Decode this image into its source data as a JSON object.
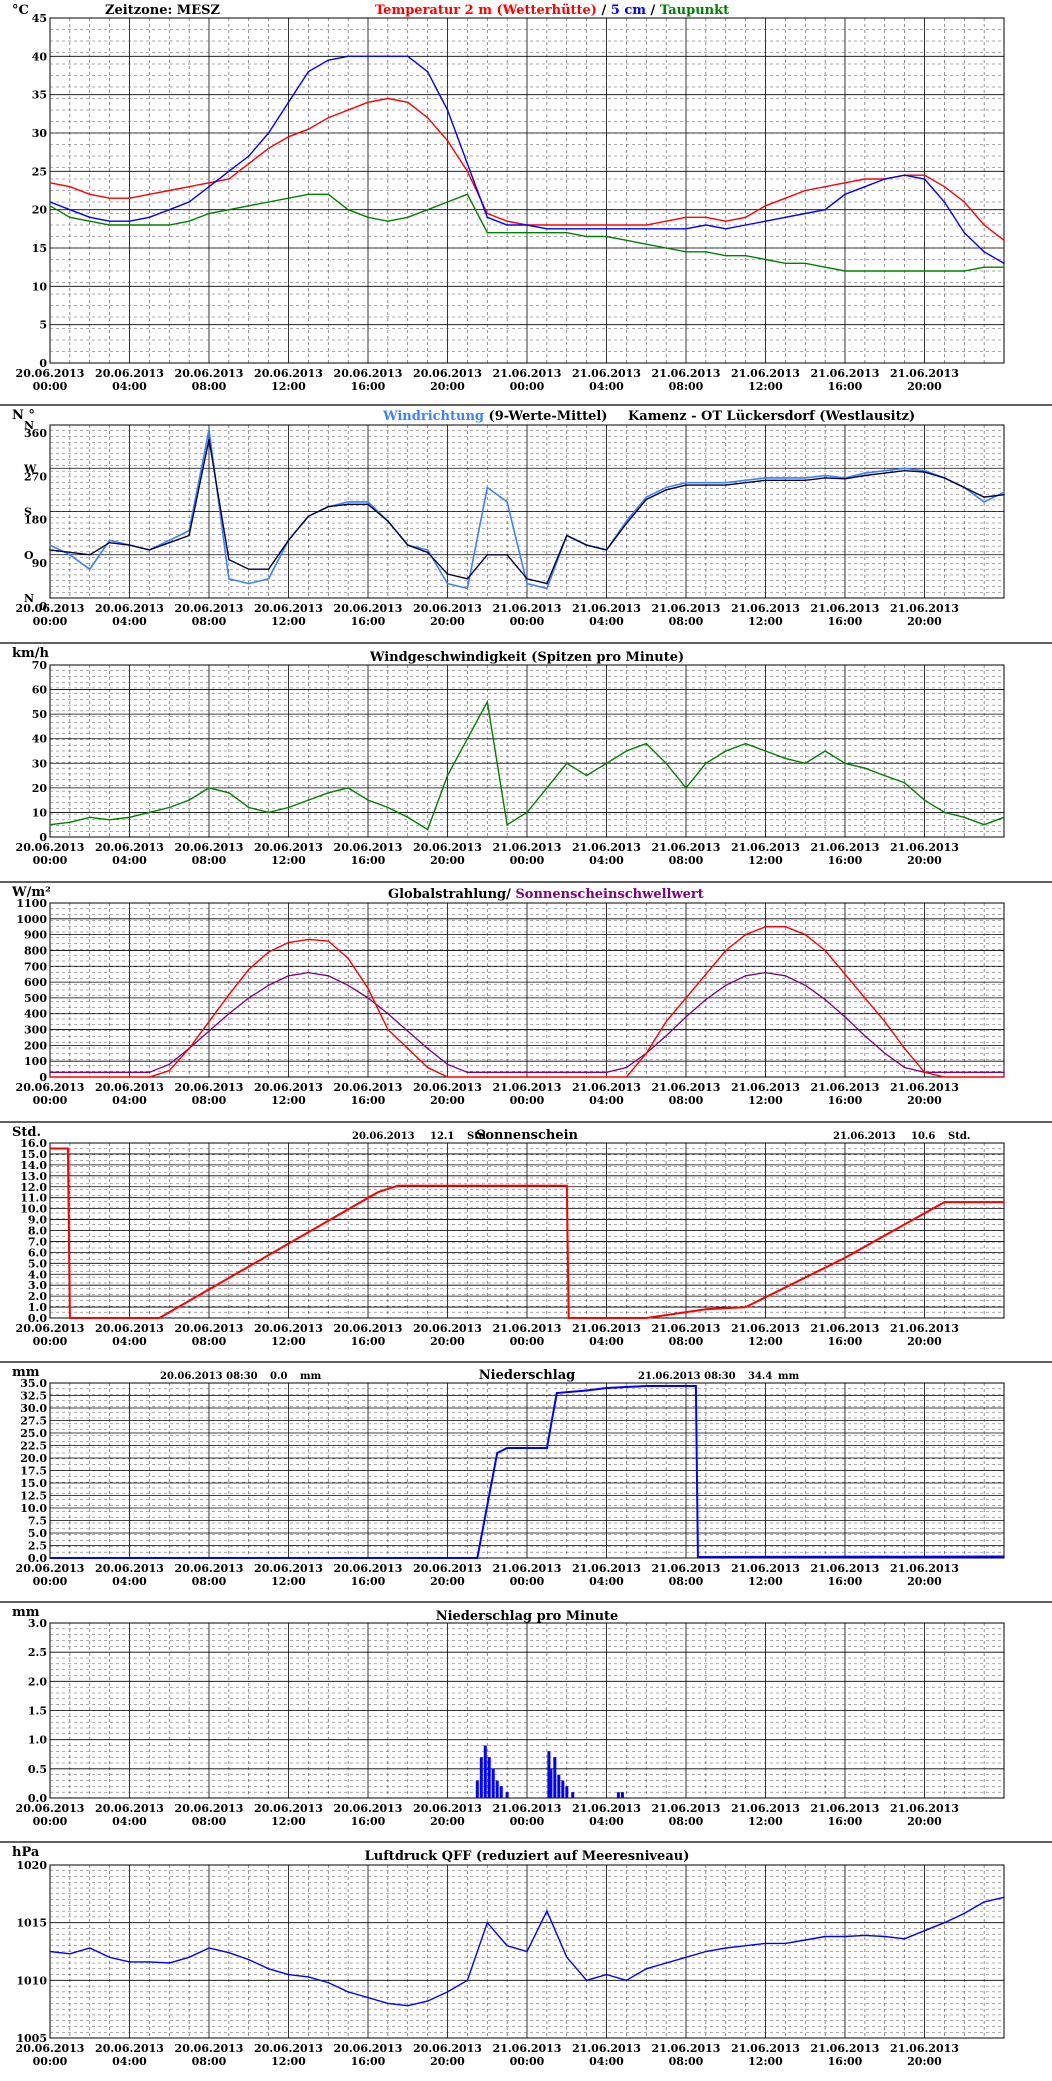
{
  "x_tick_labels": [
    [
      "20.06.2013",
      "00:00"
    ],
    [
      "20.06.2013",
      "04:00"
    ],
    [
      "20.06.2013",
      "08:00"
    ],
    [
      "20.06.2013",
      "12:00"
    ],
    [
      "20.06.2013",
      "16:00"
    ],
    [
      "20.06.2013",
      "20:00"
    ],
    [
      "21.06.2013",
      "00:00"
    ],
    [
      "21.06.2013",
      "04:00"
    ],
    [
      "21.06.2013",
      "08:00"
    ],
    [
      "21.06.2013",
      "12:00"
    ],
    [
      "21.06.2013",
      "16:00"
    ],
    [
      "21.06.2013",
      "20:00"
    ]
  ],
  "colors": {
    "red": "#ff0000",
    "blue": "#0000ff",
    "green": "#008000",
    "lightblue": "#3c82ff",
    "navy": "#000040",
    "purple": "#800080"
  },
  "chart_data": [
    {
      "type": "line",
      "timezone_label": "Zeitzone: MESZ",
      "title_parts": [
        "Temperatur 2 m (Wetterhütte)",
        "  /  ",
        "5 cm",
        " / ",
        "Taupunkt"
      ],
      "ylabel": "°C",
      "ylim": [
        0,
        45
      ],
      "yticks": [
        0,
        5,
        10,
        15,
        20,
        25,
        30,
        35,
        40,
        45
      ],
      "x_hours": [
        0,
        1,
        2,
        3,
        4,
        5,
        6,
        7,
        8,
        9,
        10,
        11,
        12,
        13,
        14,
        15,
        16,
        17,
        18,
        19,
        20,
        21,
        22,
        23,
        24,
        25,
        26,
        27,
        28,
        29,
        30,
        31,
        32,
        33,
        34,
        35,
        36,
        37,
        38,
        39,
        40,
        41,
        42,
        43,
        44,
        45,
        46,
        47,
        48
      ],
      "series": [
        {
          "name": "Temperatur 2 m (Wetterhütte)",
          "color": "red",
          "values": [
            23.5,
            23,
            22,
            21.5,
            21.5,
            22,
            22.5,
            23,
            23.5,
            24,
            26,
            28,
            29.5,
            30.5,
            32,
            33,
            34,
            34.5,
            34,
            32,
            29,
            25,
            19.5,
            18.5,
            18,
            18,
            18,
            18,
            18,
            18,
            18,
            18.5,
            19,
            19,
            18.5,
            19,
            20.5,
            21.5,
            22.5,
            23,
            23.5,
            24,
            24,
            24.5,
            24.5,
            23,
            21,
            18,
            16
          ]
        },
        {
          "name": "5 cm",
          "color": "blue",
          "values": [
            21,
            20,
            19,
            18.5,
            18.5,
            19,
            20,
            21,
            23,
            25,
            27,
            30,
            34,
            38,
            39.5,
            40,
            40,
            40,
            40,
            38,
            33,
            26,
            19,
            18,
            18,
            17.5,
            17.5,
            17.5,
            17.5,
            17.5,
            17.5,
            17.5,
            17.5,
            18,
            17.5,
            18,
            18.5,
            19,
            19.5,
            20,
            22,
            23,
            24,
            24.5,
            24,
            21,
            17,
            14.5,
            13
          ]
        },
        {
          "name": "Taupunkt",
          "color": "green",
          "values": [
            20.5,
            19,
            18.5,
            18,
            18,
            18,
            18,
            18.5,
            19.5,
            20,
            20.5,
            21,
            21.5,
            22,
            22,
            20,
            19,
            18.5,
            19,
            20,
            21,
            22,
            17,
            17,
            17,
            17,
            17,
            16.5,
            16.5,
            16,
            15.5,
            15,
            14.5,
            14.5,
            14,
            14,
            13.5,
            13,
            13,
            12.5,
            12,
            12,
            12,
            12,
            12,
            12,
            12,
            12.5,
            12.5
          ]
        }
      ]
    },
    {
      "type": "line",
      "title_parts": [
        "Windrichtung",
        " (9-Werte-Mittel)"
      ],
      "station": "Kamenz - OT Lückersdorf (Westlausitz)",
      "ylabel": "N °",
      "ylim": [
        0,
        360
      ],
      "yticks": [
        0,
        90,
        180,
        270,
        360
      ],
      "direction_labels": [
        {
          "label": "N",
          "value": 360
        },
        {
          "label": "W",
          "value": 270
        },
        {
          "label": "S",
          "value": 180
        },
        {
          "label": "O",
          "value": 90
        },
        {
          "label": "N",
          "value": 0
        }
      ],
      "x_hours": [
        0,
        1,
        2,
        3,
        4,
        5,
        6,
        7,
        8,
        9,
        10,
        11,
        12,
        13,
        14,
        15,
        16,
        17,
        18,
        19,
        20,
        21,
        22,
        23,
        24,
        25,
        26,
        27,
        28,
        29,
        30,
        31,
        32,
        33,
        34,
        35,
        36,
        37,
        38,
        39,
        40,
        41,
        42,
        43,
        44,
        45,
        46,
        47,
        48
      ],
      "series": [
        {
          "name": "Windrichtung",
          "color": "lightblue",
          "values": [
            110,
            90,
            60,
            120,
            110,
            100,
            120,
            140,
            350,
            40,
            30,
            40,
            120,
            170,
            190,
            200,
            200,
            160,
            110,
            100,
            30,
            20,
            230,
            200,
            30,
            20,
            130,
            110,
            100,
            160,
            210,
            230,
            240,
            240,
            240,
            245,
            250,
            250,
            250,
            255,
            250,
            260,
            265,
            270,
            265,
            250,
            230,
            200,
            220
          ]
        },
        {
          "name": "9-Werte-Mittel",
          "color": "navy",
          "values": [
            100,
            95,
            90,
            115,
            110,
            100,
            115,
            130,
            330,
            80,
            60,
            60,
            120,
            170,
            190,
            195,
            195,
            160,
            110,
            95,
            50,
            40,
            90,
            90,
            40,
            30,
            130,
            110,
            100,
            155,
            205,
            225,
            235,
            235,
            235,
            240,
            245,
            245,
            245,
            250,
            248,
            255,
            260,
            265,
            262,
            250,
            230,
            210,
            215
          ]
        }
      ]
    },
    {
      "type": "area",
      "title": "Windgeschwindigkeit (Spitzen pro Minute)",
      "ylabel": "km/h",
      "ylim": [
        0,
        70
      ],
      "yticks": [
        0,
        10,
        20,
        30,
        40,
        50,
        60,
        70
      ],
      "x_hours": [
        0,
        1,
        2,
        3,
        4,
        5,
        6,
        7,
        8,
        9,
        10,
        11,
        12,
        13,
        14,
        15,
        16,
        17,
        18,
        19,
        20,
        21,
        22,
        23,
        24,
        25,
        26,
        27,
        28,
        29,
        30,
        31,
        32,
        33,
        34,
        35,
        36,
        37,
        38,
        39,
        40,
        41,
        42,
        43,
        44,
        45,
        46,
        47,
        48
      ],
      "series": [
        {
          "name": "Windgeschwindigkeit",
          "color": "green",
          "values": [
            5,
            6,
            8,
            7,
            8,
            10,
            12,
            15,
            20,
            18,
            12,
            10,
            12,
            15,
            18,
            20,
            15,
            12,
            8,
            3,
            25,
            40,
            55,
            5,
            10,
            20,
            30,
            25,
            30,
            35,
            38,
            30,
            20,
            30,
            35,
            38,
            35,
            32,
            30,
            35,
            30,
            28,
            25,
            22,
            15,
            10,
            8,
            5,
            8
          ]
        }
      ]
    },
    {
      "type": "line",
      "title_parts": [
        "Globalstrahlung/",
        " Sonnenscheinschwellwert"
      ],
      "ylabel": "W/m²",
      "ylim": [
        0,
        1100
      ],
      "yticks": [
        0,
        100,
        200,
        300,
        400,
        500,
        600,
        700,
        800,
        900,
        1000,
        1100
      ],
      "x_hours": [
        0,
        1,
        2,
        3,
        4,
        5,
        6,
        7,
        8,
        9,
        10,
        11,
        12,
        13,
        14,
        15,
        16,
        17,
        18,
        19,
        20,
        21,
        22,
        23,
        24,
        25,
        26,
        27,
        28,
        29,
        30,
        31,
        32,
        33,
        34,
        35,
        36,
        37,
        38,
        39,
        40,
        41,
        42,
        43,
        44,
        45,
        46,
        47,
        48
      ],
      "series": [
        {
          "name": "Globalstrahlung",
          "color": "red",
          "values": [
            0,
            0,
            0,
            0,
            0,
            0,
            40,
            180,
            350,
            520,
            680,
            790,
            850,
            870,
            860,
            750,
            560,
            300,
            180,
            60,
            0,
            0,
            0,
            0,
            0,
            0,
            0,
            0,
            0,
            0,
            150,
            350,
            500,
            650,
            800,
            900,
            950,
            950,
            900,
            800,
            650,
            500,
            350,
            180,
            30,
            0,
            0,
            0,
            0
          ]
        },
        {
          "name": "Sonnenscheinschwellwert",
          "color": "purple",
          "values": [
            30,
            30,
            30,
            30,
            30,
            30,
            80,
            180,
            290,
            400,
            500,
            580,
            640,
            660,
            640,
            580,
            500,
            400,
            290,
            180,
            80,
            30,
            30,
            30,
            30,
            30,
            30,
            30,
            30,
            60,
            150,
            260,
            380,
            490,
            580,
            640,
            660,
            640,
            580,
            490,
            380,
            260,
            150,
            60,
            30,
            30,
            30,
            30,
            30
          ]
        }
      ]
    },
    {
      "type": "line",
      "title": "Sonnenschein",
      "ylabel": "Std.",
      "ylim": [
        0,
        16
      ],
      "yticks": [
        0,
        1,
        2,
        3,
        4,
        5,
        6,
        7,
        8,
        9,
        10,
        11,
        12,
        13,
        14,
        15,
        16
      ],
      "summaries": [
        {
          "date": "20.06.2013",
          "value": "12.1",
          "unit": "Std."
        },
        {
          "date": "21.06.2013",
          "value": "10.6",
          "unit": "Std."
        }
      ],
      "x_hours": [
        0,
        0.9,
        1,
        5.5,
        16.5,
        17.5,
        26,
        26.1,
        30,
        33,
        35,
        40,
        45,
        48
      ],
      "series": [
        {
          "name": "Sonnenschein",
          "color": "red",
          "values": [
            15.5,
            15.5,
            0,
            0,
            11.5,
            12.1,
            12.1,
            0,
            0,
            0.8,
            1.0,
            5.5,
            10.6,
            10.6
          ]
        }
      ]
    },
    {
      "type": "line",
      "title": "Niederschlag",
      "ylabel": "mm",
      "ylim": [
        0,
        35
      ],
      "yticks": [
        0,
        2.5,
        5,
        7.5,
        10,
        12.5,
        15,
        17.5,
        20,
        22.5,
        25,
        27.5,
        30,
        32.5,
        35
      ],
      "summaries": [
        {
          "date": "20.06.2013 08:30",
          "value": "0.0",
          "unit": "mm"
        },
        {
          "date": "21.06.2013 08:30",
          "value": "34.4",
          "unit": "mm"
        }
      ],
      "x_hours": [
        0,
        21.5,
        22.5,
        23,
        25,
        25.5,
        27,
        28,
        30,
        32,
        32.5,
        32.6,
        48
      ],
      "series": [
        {
          "name": "Niederschlag",
          "color": "blue",
          "values": [
            0,
            0,
            21,
            22,
            22,
            33,
            33.5,
            34,
            34.4,
            34.4,
            34.4,
            0.2,
            0.3
          ]
        }
      ]
    },
    {
      "type": "bar",
      "title": "Niederschlag pro Minute",
      "ylabel": "mm",
      "ylim": [
        0,
        3
      ],
      "yticks": [
        0,
        0.5,
        1,
        1.5,
        2,
        2.5,
        3
      ],
      "x_hours": [
        21.5,
        21.7,
        21.9,
        22.1,
        22.3,
        22.5,
        22.7,
        23.0,
        25.1,
        25.2,
        25.4,
        25.6,
        25.8,
        26.0,
        26.3,
        28.6,
        28.8
      ],
      "series": [
        {
          "name": "Niederschlag pro Minute",
          "color": "blue",
          "values": [
            0.3,
            0.7,
            0.9,
            0.7,
            0.5,
            0.3,
            0.2,
            0.1,
            0.8,
            0.5,
            0.7,
            0.4,
            0.3,
            0.2,
            0.1,
            0.1,
            0.1
          ]
        }
      ]
    },
    {
      "type": "line",
      "title": "Luftdruck QFF (reduziert auf Meeresniveau)",
      "ylabel": "hPa",
      "ylim": [
        1005,
        1020
      ],
      "yticks": [
        1005,
        1010,
        1015,
        1020
      ],
      "x_hours": [
        0,
        1,
        2,
        3,
        4,
        5,
        6,
        7,
        8,
        9,
        10,
        11,
        12,
        13,
        14,
        15,
        16,
        17,
        18,
        19,
        20,
        21,
        22,
        23,
        24,
        25,
        26,
        27,
        28,
        29,
        30,
        31,
        32,
        33,
        34,
        35,
        36,
        37,
        38,
        39,
        40,
        41,
        42,
        43,
        44,
        45,
        46,
        47,
        48
      ],
      "series": [
        {
          "name": "Luftdruck QFF",
          "color": "blue",
          "values": [
            1012.5,
            1012.3,
            1012.8,
            1012,
            1011.6,
            1011.6,
            1011.5,
            1012,
            1012.8,
            1012.4,
            1011.8,
            1011,
            1010.5,
            1010.3,
            1009.8,
            1009,
            1008.5,
            1008,
            1007.8,
            1008.2,
            1009,
            1010,
            1015,
            1013,
            1012.5,
            1016,
            1012,
            1010,
            1010.5,
            1010,
            1011,
            1011.5,
            1012,
            1012.5,
            1012.8,
            1013,
            1013.2,
            1013.2,
            1013.5,
            1013.8,
            1013.8,
            1013.9,
            1013.8,
            1013.6,
            1014.3,
            1015,
            1015.8,
            1016.8,
            1017.2
          ]
        }
      ]
    }
  ]
}
